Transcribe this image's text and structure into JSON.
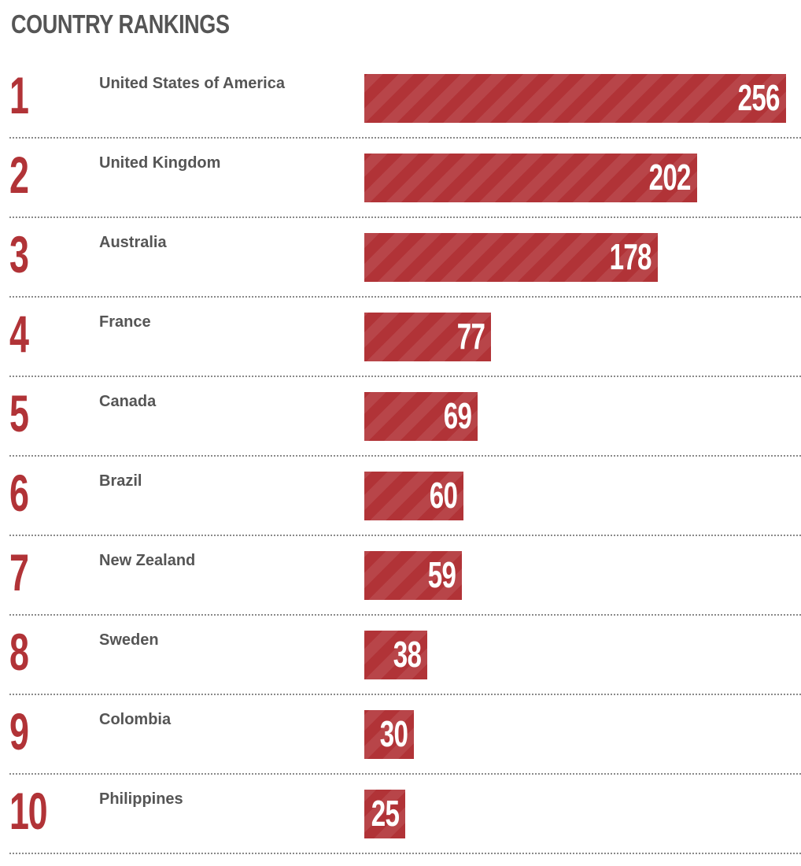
{
  "title": "COUNTRY RANKINGS",
  "accent_color": "#b13337",
  "text_color": "#555555",
  "chart_data": {
    "type": "bar",
    "orientation": "horizontal",
    "title": "COUNTRY RANKINGS",
    "ranks": [
      "1",
      "2",
      "3",
      "4",
      "5",
      "6",
      "7",
      "8",
      "9",
      "10"
    ],
    "categories": [
      "United States of America",
      "United Kingdom",
      "Australia",
      "France",
      "Canada",
      "Brazil",
      "New Zealand",
      "Sweden",
      "Colombia",
      "Philippines"
    ],
    "values": [
      256,
      202,
      178,
      77,
      69,
      60,
      59,
      38,
      30,
      25
    ],
    "xlim": [
      0,
      256
    ],
    "grid": false,
    "legend": "none"
  }
}
